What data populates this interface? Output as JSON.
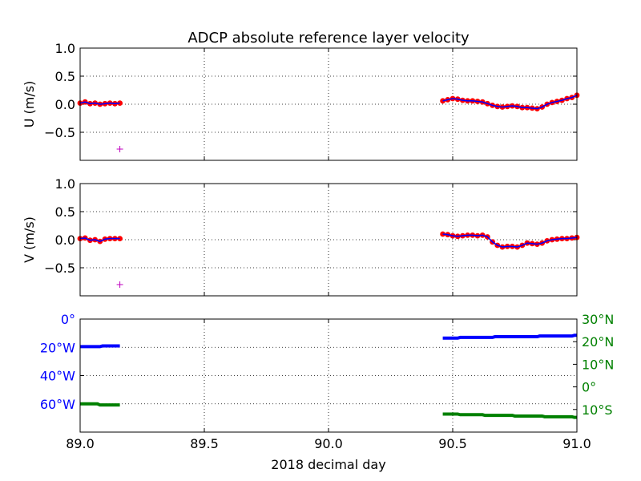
{
  "title": "ADCP absolute reference layer velocity",
  "xlabel": "2018 decimal day",
  "colors": {
    "dots": "#ff0000",
    "line": "#0000ff",
    "marker": "#bf00bf",
    "lon": "#0000ff",
    "lat": "#008000",
    "grid": "#000000"
  },
  "chart_data": [
    {
      "type": "scatter",
      "title": "ADCP absolute reference layer velocity",
      "xlabel": "",
      "ylabel": "U (m/s)",
      "xlim": [
        89.0,
        91.0
      ],
      "ylim": [
        -1.0,
        1.0
      ],
      "xticks": [
        89.0,
        89.5,
        90.0,
        90.5,
        91.0
      ],
      "yticks": [
        1.0,
        0.5,
        0.0,
        -0.5
      ],
      "ytick_labels": [
        "1.0",
        "0.5",
        "0.0",
        "−0.5"
      ],
      "grid": true,
      "series": [
        {
          "values_x": [
            89.0,
            89.02,
            89.04,
            89.06,
            89.08,
            89.1,
            89.12,
            89.14,
            89.16
          ],
          "values_y": [
            0.02,
            0.04,
            0.01,
            0.02,
            0.0,
            0.01,
            0.02,
            0.01,
            0.02
          ]
        },
        {
          "values_x": [
            90.46,
            90.48,
            90.5,
            90.52,
            90.54,
            90.56,
            90.58,
            90.6,
            90.62,
            90.64,
            90.66,
            90.68,
            90.7,
            90.72,
            90.74,
            90.76,
            90.78,
            90.8,
            90.82,
            90.84,
            90.86,
            90.88,
            90.9,
            90.92,
            90.94,
            90.96,
            90.98,
            91.0
          ],
          "values_y": [
            0.06,
            0.08,
            0.1,
            0.09,
            0.07,
            0.06,
            0.06,
            0.05,
            0.04,
            0.01,
            -0.02,
            -0.04,
            -0.05,
            -0.04,
            -0.03,
            -0.04,
            -0.06,
            -0.06,
            -0.07,
            -0.08,
            -0.05,
            0.0,
            0.03,
            0.05,
            0.07,
            0.1,
            0.12,
            0.16
          ]
        }
      ],
      "marker": {
        "x": 89.16,
        "y": -0.8
      }
    },
    {
      "type": "scatter",
      "ylabel": "V (m/s)",
      "xlim": [
        89.0,
        91.0
      ],
      "ylim": [
        -1.0,
        1.0
      ],
      "xticks": [
        89.0,
        89.5,
        90.0,
        90.5,
        91.0
      ],
      "yticks": [
        1.0,
        0.5,
        0.0,
        -0.5
      ],
      "ytick_labels": [
        "1.0",
        "0.5",
        "0.0",
        "−0.5"
      ],
      "grid": true,
      "series": [
        {
          "values_x": [
            89.0,
            89.02,
            89.04,
            89.06,
            89.08,
            89.1,
            89.12,
            89.14,
            89.16
          ],
          "values_y": [
            0.02,
            0.03,
            -0.01,
            0.0,
            -0.03,
            0.01,
            0.02,
            0.02,
            0.02
          ]
        },
        {
          "values_x": [
            90.46,
            90.48,
            90.5,
            90.52,
            90.54,
            90.56,
            90.58,
            90.6,
            90.62,
            90.64,
            90.66,
            90.68,
            90.7,
            90.72,
            90.74,
            90.76,
            90.78,
            90.8,
            90.82,
            90.84,
            90.86,
            90.88,
            90.9,
            90.92,
            90.94,
            90.96,
            90.98,
            91.0
          ],
          "values_y": [
            0.1,
            0.09,
            0.07,
            0.06,
            0.07,
            0.08,
            0.08,
            0.07,
            0.08,
            0.05,
            -0.04,
            -0.1,
            -0.13,
            -0.12,
            -0.12,
            -0.13,
            -0.1,
            -0.06,
            -0.07,
            -0.08,
            -0.06,
            -0.02,
            0.0,
            0.01,
            0.02,
            0.02,
            0.03,
            0.04
          ]
        }
      ],
      "marker": {
        "x": 89.16,
        "y": -0.8
      }
    },
    {
      "type": "line",
      "xlabel": "2018 decimal day",
      "xlim": [
        89.0,
        91.0
      ],
      "xticks": [
        89.0,
        89.5,
        90.0,
        90.5,
        91.0
      ],
      "xtick_labels": [
        "89.0",
        "89.5",
        "90.0",
        "90.5",
        "91.0"
      ],
      "grid": true,
      "left_axis": {
        "ylim": [
          -80,
          0
        ],
        "yticks": [
          0,
          -20,
          -40,
          -60
        ],
        "ytick_labels": [
          "0°",
          "20°W",
          "40°W",
          "60°W"
        ]
      },
      "right_axis": {
        "ylim": [
          -20,
          30
        ],
        "yticks": [
          30,
          20,
          10,
          0,
          -10
        ],
        "ytick_labels": [
          "30°N",
          "20°N",
          "10°N",
          "0°",
          "10°S"
        ]
      },
      "series": [
        {
          "axis": "left",
          "segments": [
            {
              "x": [
                89.0,
                89.08,
                89.09,
                89.16
              ],
              "y": [
                -19.5,
                -19.5,
                -19.0,
                -19.0
              ]
            },
            {
              "x": [
                90.46,
                90.52,
                90.53,
                90.66,
                90.67,
                90.84,
                90.85,
                90.98,
                90.99,
                91.0
              ],
              "y": [
                -13.5,
                -13.5,
                -13.0,
                -13.0,
                -12.5,
                -12.5,
                -12.0,
                -12.0,
                -11.5,
                -11.5
              ]
            }
          ]
        },
        {
          "axis": "right",
          "segments": [
            {
              "x": [
                89.0,
                89.07,
                89.08,
                89.16
              ],
              "y": [
                -7.5,
                -7.5,
                -8.0,
                -8.0
              ]
            },
            {
              "x": [
                90.46,
                90.52,
                90.53,
                90.62,
                90.63,
                90.74,
                90.75,
                90.86,
                90.87,
                90.98,
                90.99,
                91.0
              ],
              "y": [
                -12.0,
                -12.0,
                -12.3,
                -12.3,
                -12.6,
                -12.6,
                -12.9,
                -12.9,
                -13.2,
                -13.2,
                -13.5,
                -13.5
              ]
            }
          ]
        }
      ]
    }
  ]
}
